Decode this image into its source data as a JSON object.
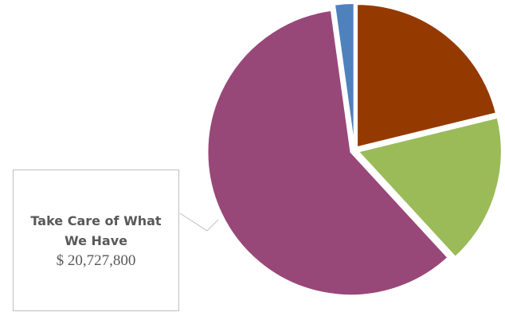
{
  "chart_data": {
    "type": "pie",
    "categories": [
      null,
      null,
      "Take Care of What We Have",
      null
    ],
    "values": [
      7360000,
      5900000,
      20727800,
      760000
    ],
    "value_labels": [
      null,
      null,
      "$ 20,727,800",
      null
    ],
    "colors": [
      "#943a00",
      "#9bbb59",
      "#984878",
      "#4f81bd"
    ]
  }
}
